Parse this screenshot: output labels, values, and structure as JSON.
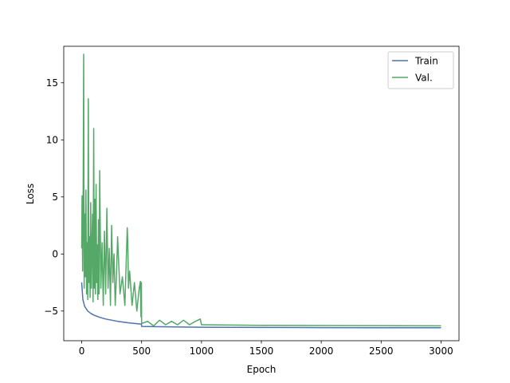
{
  "chart_data": {
    "type": "line",
    "title": "",
    "xlabel": "Epoch",
    "ylabel": "Loss",
    "xlim": [
      -150,
      3150
    ],
    "ylim": [
      -7.6,
      18.2
    ],
    "xticks": [
      0,
      500,
      1000,
      1500,
      2000,
      2500,
      3000
    ],
    "yticks": [
      -5,
      0,
      5,
      10,
      15
    ],
    "legend": {
      "placement": "top-right",
      "entries": [
        "Train",
        "Val."
      ]
    },
    "grid": false,
    "colors": {
      "Train": "#4c72b0",
      "Val.": "#55a868"
    },
    "series": [
      {
        "name": "Train",
        "x": [
          0,
          10,
          25,
          50,
          75,
          100,
          150,
          200,
          300,
          400,
          499,
          500,
          600,
          800,
          1000,
          1500,
          2000,
          2500,
          3000
        ],
        "values": [
          -2.5,
          -4.0,
          -4.6,
          -5.0,
          -5.2,
          -5.35,
          -5.55,
          -5.7,
          -5.9,
          -6.05,
          -6.15,
          -6.35,
          -6.37,
          -6.4,
          -6.42,
          -6.44,
          -6.45,
          -6.46,
          -6.47
        ]
      },
      {
        "name": "Val.",
        "x": [
          0,
          3,
          8,
          12,
          16,
          20,
          25,
          30,
          35,
          40,
          45,
          50,
          55,
          60,
          65,
          70,
          75,
          80,
          85,
          90,
          95,
          100,
          105,
          110,
          115,
          120,
          125,
          130,
          135,
          140,
          145,
          150,
          160,
          170,
          180,
          190,
          200,
          210,
          220,
          230,
          240,
          250,
          260,
          270,
          280,
          290,
          300,
          320,
          340,
          360,
          380,
          385,
          390,
          400,
          420,
          440,
          460,
          480,
          490,
          495,
          499,
          500,
          550,
          600,
          650,
          700,
          750,
          800,
          850,
          900,
          950,
          990,
          1000,
          1500,
          2000,
          2500,
          3000
        ],
        "values": [
          0.5,
          5.1,
          -1.5,
          4.2,
          17.5,
          -3.0,
          3.5,
          -2.0,
          5.6,
          -3.5,
          1.0,
          -4.0,
          13.6,
          -2.5,
          1.5,
          -3.8,
          4.5,
          -3.0,
          0.5,
          3.5,
          -4.2,
          11.0,
          -3.0,
          4.8,
          -3.5,
          6.1,
          -2.5,
          0.8,
          -4.0,
          3.0,
          -3.5,
          7.3,
          -3.0,
          1.0,
          -4.5,
          2.0,
          -3.5,
          4.0,
          -3.0,
          0.5,
          -4.5,
          2.5,
          -2.5,
          0.0,
          -4.5,
          -2.0,
          1.5,
          -3.5,
          -2.0,
          -4.5,
          2.3,
          1.0,
          -3.0,
          -1.5,
          -4.5,
          -2.5,
          -5.0,
          -3.0,
          -2.4,
          -5.5,
          -2.5,
          -6.1,
          -5.9,
          -6.3,
          -5.8,
          -6.2,
          -5.9,
          -6.2,
          -5.8,
          -6.2,
          -5.9,
          -5.7,
          -6.2,
          -6.25,
          -6.27,
          -6.28,
          -6.3
        ]
      }
    ]
  }
}
